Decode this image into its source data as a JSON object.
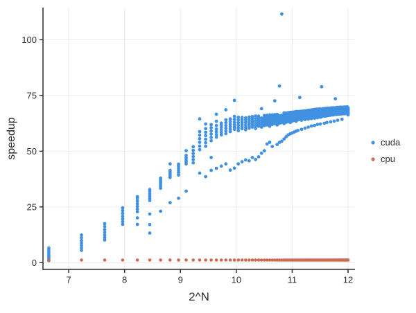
{
  "figure": {
    "background": "#ffffff"
  },
  "chart_data": {
    "type": "scatter",
    "title": "",
    "xlabel": "2^N",
    "ylabel": "speedup",
    "xlim": [
      6.54,
      12.124
    ],
    "ylim": [
      -3,
      114.4
    ],
    "xticks": [
      7,
      8,
      9,
      10,
      11,
      12
    ],
    "yticks": [
      0,
      25,
      50,
      75,
      100
    ],
    "grid": true,
    "grid_color": "#ececec",
    "axis_color": "#2c2c2c",
    "legend_position": "right-outside",
    "series": [
      {
        "name": "cuda",
        "color": "#4191e1",
        "marker": "circle",
        "marker_radius": 2.4,
        "clusters": [
          {
            "x": 6.644,
            "ys": [
              0.9,
              1.8,
              2.7,
              3.6,
              4.6,
              5.6,
              6.6
            ]
          },
          {
            "x": 7.229,
            "ys": [
              5.5,
              6.6,
              7.7,
              8.8,
              9.9,
              11.2,
              12.4
            ]
          },
          {
            "x": 7.644,
            "ys": [
              10.2,
              11.3,
              12.4,
              13.6,
              14.8,
              16.2,
              17.5
            ]
          },
          {
            "x": 7.966,
            "ys": [
              17.2,
              18.4,
              19.6,
              20.8,
              22.1,
              23.4,
              24.6
            ]
          },
          {
            "x": 8.229,
            "ys": [
              17.2,
              20.1,
              22.8,
              24.0,
              25.2,
              26.4,
              27.6,
              28.8,
              29.6
            ]
          },
          {
            "x": 8.451,
            "ys": [
              13.3,
              17.1,
              21.8,
              27.9,
              28.9,
              29.9,
              30.9,
              31.9,
              32.8
            ]
          },
          {
            "x": 8.644,
            "ys": [
              23.1,
              33.4,
              34.3,
              35.2,
              36.1,
              37.0,
              37.9
            ]
          },
          {
            "x": 8.814,
            "ys": [
              26.9,
              38.2,
              39.0,
              39.8,
              40.6,
              41.4,
              44.3
            ]
          },
          {
            "x": 8.966,
            "ys": [
              28.9,
              39.3,
              40.3,
              41.3,
              42.3,
              43.3,
              44.2
            ]
          },
          {
            "x": 9.103,
            "ys": [
              32.1,
              44.3,
              45.2,
              46.1,
              47.0,
              48.1,
              50.2
            ]
          },
          {
            "x": 9.229,
            "ys": [
              44.8,
              46.2,
              47.6,
              49.0,
              50.4,
              52.0
            ]
          },
          {
            "x": 9.344,
            "ys": [
              40.2,
              50.7,
              52.3,
              54.0,
              55.6,
              57.2,
              58.8,
              64.5
            ]
          },
          {
            "x": 9.451,
            "ys": [
              38.6,
              52.2,
              53.8,
              55.4,
              57.0,
              58.5,
              60.1,
              62.2
            ]
          },
          {
            "x": 9.551,
            "ys": [
              41.4,
              47.2,
              54.7,
              56.2,
              57.7,
              59.1,
              60.5,
              61.9
            ]
          },
          {
            "x": 9.644,
            "ys": [
              42.3,
              56.3,
              57.5,
              58.7,
              59.9,
              61.5,
              63.4,
              66.6
            ]
          },
          {
            "x": 9.731,
            "ys": [
              43.3,
              57.3,
              58.4,
              59.5,
              60.7,
              61.8,
              62.6
            ]
          },
          {
            "x": 9.814,
            "ys": [
              44.3,
              57.9,
              59.1,
              60.3,
              61.5,
              62.8,
              64.1,
              68.6
            ]
          },
          {
            "x": 9.892,
            "ys": [
              41.5,
              58.8,
              59.9,
              61.0,
              62.1,
              63.3,
              64.5
            ]
          },
          {
            "x": 9.966,
            "ys": [
              42.4,
              59.8,
              60.8,
              61.9,
              63.0,
              64.3,
              65.6,
              72.8
            ]
          },
          {
            "x": 10.036,
            "ys": [
              44.3,
              59.2,
              60.4,
              61.6,
              62.8,
              64.0,
              65.2
            ]
          },
          {
            "x": 10.103,
            "ys": [
              45.3,
              60.1,
              61.1,
              62.1,
              63.1,
              64.1,
              65.1
            ]
          },
          {
            "x": 10.167,
            "ys": [
              46.1,
              59.6,
              60.7,
              61.8,
              62.9,
              64.0,
              65.0
            ]
          },
          {
            "x": 10.229,
            "ys": [
              45.7,
              60.3,
              61.3,
              62.3,
              63.3,
              64.3,
              65.3
            ]
          },
          {
            "x": 10.288,
            "ys": [
              47.2,
              60.8,
              61.8,
              62.7,
              63.6,
              64.6,
              65.5
            ]
          },
          {
            "x": 10.344,
            "ys": [
              46.3,
              60.2,
              61.4,
              62.5,
              63.6,
              64.7,
              65.8
            ]
          },
          {
            "x": 10.399,
            "ys": [
              47.5,
              61.2,
              62.1,
              63.0,
              63.9,
              64.8,
              65.7
            ]
          },
          {
            "x": 10.451,
            "ys": [
              49.1,
              60.8,
              61.9,
              62.9,
              63.9,
              64.9,
              69.1
            ]
          },
          {
            "x": 10.502,
            "ys": [
              50.2,
              61.5,
              62.4,
              63.3,
              64.2,
              65.1,
              66.0
            ]
          },
          {
            "x": 10.551,
            "ys": [
              53.2,
              61.8,
              62.7,
              63.5,
              64.4,
              65.3,
              66.1
            ]
          },
          {
            "x": 10.598,
            "ys": [
              54.0,
              61.2,
              62.3,
              63.3,
              64.3,
              65.3,
              66.3
            ]
          },
          {
            "x": 10.644,
            "ys": [
              52.1,
              62.0,
              62.9,
              63.7,
              64.6,
              65.5,
              66.3
            ]
          },
          {
            "x": 10.688,
            "ys": [
              62.3,
              63.1,
              64.0,
              64.8,
              65.6,
              66.4,
              72.6
            ]
          },
          {
            "x": 10.731,
            "ys": [
              53.0,
              61.8,
              62.8,
              63.8,
              64.7,
              65.6,
              66.5
            ]
          },
          {
            "x": 10.773,
            "ys": [
              54.0,
              62.5,
              63.4,
              64.2,
              65.1,
              65.9,
              79.2
            ]
          },
          {
            "x": 10.814,
            "ys": [
              54.5,
              62.8,
              63.7,
              64.5,
              65.3,
              66.1,
              111.5
            ]
          },
          {
            "x": 10.854,
            "ys": [
              55.5,
              62.4,
              63.4,
              64.4,
              65.4,
              66.3,
              67.2
            ]
          },
          {
            "x": 10.892,
            "ys": [
              56.5,
              63.0,
              63.9,
              64.7,
              65.5,
              66.3,
              67.1
            ]
          },
          {
            "x": 10.929,
            "ys": [
              57.3,
              63.3,
              64.1,
              64.9,
              65.7,
              66.5,
              67.3
            ]
          },
          {
            "x": 10.966,
            "ys": [
              57.8,
              62.9,
              63.8,
              64.7,
              65.6,
              66.5,
              67.4
            ]
          },
          {
            "x": 11.001,
            "ys": [
              58.2,
              63.5,
              64.3,
              65.1,
              65.9,
              66.7,
              67.5
            ]
          },
          {
            "x": 11.036,
            "ys": [
              58.6,
              63.8,
              64.6,
              65.4,
              66.1,
              66.9,
              67.6
            ]
          },
          {
            "x": 11.07,
            "ys": [
              59.0,
              63.4,
              64.3,
              65.2,
              66.1,
              67.0,
              67.8
            ]
          },
          {
            "x": 11.103,
            "ys": [
              59.3,
              64.1,
              64.8,
              65.6,
              66.3,
              67.1,
              67.8
            ]
          },
          {
            "x": 11.136,
            "ys": [
              64.3,
              65.0,
              65.7,
              66.4,
              67.1,
              67.8,
              74.1
            ]
          },
          {
            "x": 11.167,
            "ys": [
              59.8,
              63.9,
              64.7,
              65.5,
              66.3,
              67.1,
              67.9
            ]
          },
          {
            "x": 11.199,
            "ys": [
              64.5,
              65.2,
              65.9,
              66.6,
              67.3,
              68.0
            ]
          },
          {
            "x": 11.229,
            "ys": [
              60.3,
              64.2,
              65.0,
              65.8,
              66.6,
              67.4,
              68.1
            ]
          },
          {
            "x": 11.259,
            "ys": [
              64.7,
              65.4,
              66.1,
              66.8,
              67.5,
              68.2
            ]
          },
          {
            "x": 11.288,
            "ys": [
              60.8,
              64.4,
              65.2,
              66.0,
              66.8,
              67.6,
              68.3
            ]
          },
          {
            "x": 11.316,
            "ys": [
              64.9,
              65.6,
              66.3,
              67.0,
              67.7,
              68.4
            ]
          },
          {
            "x": 11.344,
            "ys": [
              61.3,
              64.6,
              65.4,
              66.2,
              67.0,
              67.8,
              68.5
            ]
          },
          {
            "x": 11.372,
            "ys": [
              65.1,
              65.8,
              66.5,
              67.2,
              67.9,
              68.6
            ]
          },
          {
            "x": 11.399,
            "ys": [
              61.5,
              64.8,
              65.6,
              66.4,
              67.2,
              68.0,
              68.7
            ]
          },
          {
            "x": 11.425,
            "ys": [
              65.3,
              66.0,
              66.7,
              67.4,
              68.1,
              68.8
            ]
          },
          {
            "x": 11.451,
            "ys": [
              62.0,
              65.0,
              65.8,
              66.6,
              67.4,
              68.2,
              68.9
            ]
          },
          {
            "x": 11.477,
            "ys": [
              65.4,
              66.1,
              66.8,
              67.5,
              68.2,
              68.9
            ]
          },
          {
            "x": 11.502,
            "ys": [
              62.2,
              65.2,
              66.0,
              66.7,
              67.5,
              68.3,
              69.0
            ]
          },
          {
            "x": 11.527,
            "ys": [
              65.5,
              66.2,
              66.9,
              67.6,
              68.3,
              78.9
            ]
          },
          {
            "x": 11.551,
            "ys": [
              66.3,
              66.5,
              67.1,
              67.7,
              68.3,
              69.1
            ]
          },
          {
            "x": 11.575,
            "ys": [
              62.5,
              65.7,
              66.4,
              67.1,
              67.8,
              68.5,
              69.1
            ]
          },
          {
            "x": 11.598,
            "ys": [
              65.8,
              66.5,
              67.2,
              67.8,
              68.4,
              69.2
            ]
          },
          {
            "x": 11.621,
            "ys": [
              62.9,
              65.9,
              66.6,
              67.3,
              68.0,
              68.7,
              69.2
            ]
          },
          {
            "x": 11.644,
            "ys": [
              66.0,
              66.7,
              67.3,
              67.9,
              68.5,
              69.3
            ]
          },
          {
            "x": 11.666,
            "ys": [
              66.1,
              66.8,
              67.4,
              68.0,
              68.6,
              69.2
            ]
          },
          {
            "x": 11.688,
            "ys": [
              63.2,
              66.2,
              66.9,
              67.5,
              68.1,
              68.7,
              69.4
            ]
          },
          {
            "x": 11.71,
            "ys": [
              66.3,
              66.9,
              67.5,
              68.1,
              68.7,
              69.4
            ]
          },
          {
            "x": 11.731,
            "ys": [
              66.3,
              67.0,
              67.6,
              68.2,
              68.8,
              69.5
            ]
          },
          {
            "x": 11.752,
            "ys": [
              63.5,
              66.4,
              67.0,
              67.6,
              68.2,
              68.8,
              69.5
            ]
          },
          {
            "x": 11.773,
            "ys": [
              66.5,
              67.1,
              67.7,
              68.3,
              68.9,
              73.5
            ]
          },
          {
            "x": 11.793,
            "ys": [
              66.5,
              67.1,
              67.7,
              68.3,
              68.9,
              69.6
            ]
          },
          {
            "x": 11.814,
            "ys": [
              63.9,
              66.6,
              67.2,
              67.8,
              68.4,
              69.0,
              69.6
            ]
          },
          {
            "x": 11.834,
            "ys": [
              66.6,
              67.2,
              67.8,
              68.4,
              69.0,
              69.6
            ]
          },
          {
            "x": 11.853,
            "ys": [
              66.7,
              67.3,
              67.8,
              68.4,
              69.0,
              69.7
            ]
          },
          {
            "x": 11.873,
            "ys": [
              66.7,
              67.3,
              67.9,
              68.5,
              69.1,
              69.7
            ]
          },
          {
            "x": 11.892,
            "ys": [
              64.3,
              66.8,
              67.4,
              67.9,
              68.5,
              69.1,
              69.7
            ]
          },
          {
            "x": 11.911,
            "ys": [
              66.8,
              67.4,
              68.0,
              68.5,
              69.1,
              69.7
            ]
          },
          {
            "x": 11.929,
            "ys": [
              66.8,
              67.4,
              68.0,
              68.6,
              69.2,
              69.8
            ]
          },
          {
            "x": 11.948,
            "ys": [
              66.9,
              67.5,
              68.0,
              68.6,
              69.2,
              69.8
            ]
          },
          {
            "x": 11.966,
            "ys": [
              66.9,
              67.5,
              68.1,
              68.6,
              69.2,
              69.8
            ]
          },
          {
            "x": 11.984,
            "ys": [
              66.9,
              67.5,
              68.1,
              68.7,
              69.3,
              69.9
            ]
          },
          {
            "x": 12.001,
            "ys": [
              66.3,
              67.0,
              67.6,
              68.2,
              68.8,
              69.4
            ]
          }
        ]
      },
      {
        "name": "cpu",
        "color": "#cd6a51",
        "marker": "circle",
        "marker_radius": 2.3,
        "x_same_as": "cuda",
        "y_constant": 1.2
      }
    ]
  }
}
